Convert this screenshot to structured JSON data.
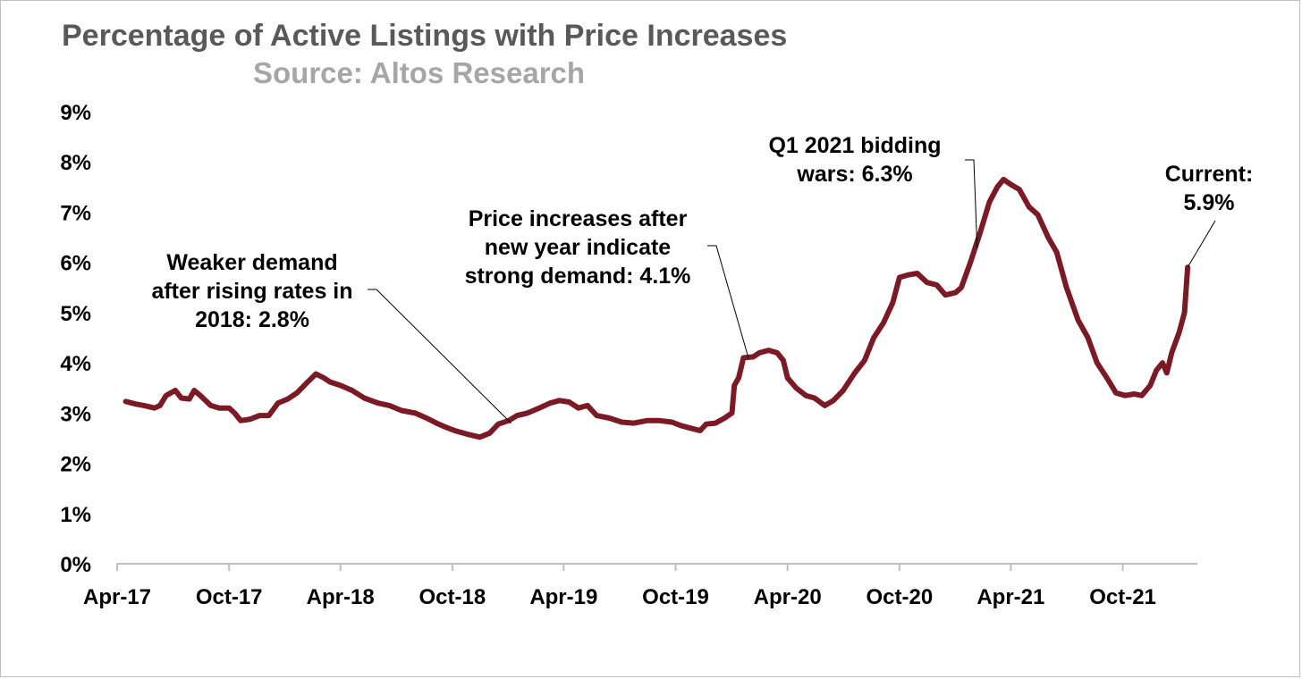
{
  "chart_data": {
    "type": "line",
    "title": "Percentage of Active Listings with Price Increases",
    "subtitle": "Source: Altos Research",
    "xlabel": "",
    "ylabel": "",
    "ylim": [
      0,
      9
    ],
    "yticks": [
      "0%",
      "1%",
      "2%",
      "3%",
      "4%",
      "5%",
      "6%",
      "7%",
      "8%",
      "9%"
    ],
    "xticks": [
      "Apr-17",
      "Oct-17",
      "Apr-18",
      "Oct-18",
      "Apr-19",
      "Oct-19",
      "Apr-20",
      "Oct-20",
      "Apr-21",
      "Oct-21"
    ],
    "xlim": [
      "2017-04-01",
      "2022-01-31"
    ],
    "grid": false,
    "legend": "none",
    "series": [
      {
        "color": "#7b1a24",
        "points": [
          [
            "2017-04-15",
            3.23
          ],
          [
            "2017-05-01",
            3.18
          ],
          [
            "2017-05-15",
            3.15
          ],
          [
            "2017-06-01",
            3.1
          ],
          [
            "2017-06-10",
            3.15
          ],
          [
            "2017-06-20",
            3.35
          ],
          [
            "2017-07-05",
            3.45
          ],
          [
            "2017-07-15",
            3.3
          ],
          [
            "2017-07-28",
            3.28
          ],
          [
            "2017-08-05",
            3.45
          ],
          [
            "2017-08-15",
            3.35
          ],
          [
            "2017-09-01",
            3.15
          ],
          [
            "2017-09-15",
            3.1
          ],
          [
            "2017-10-01",
            3.1
          ],
          [
            "2017-10-10",
            3.0
          ],
          [
            "2017-10-20",
            2.85
          ],
          [
            "2017-11-05",
            2.88
          ],
          [
            "2017-11-20",
            2.95
          ],
          [
            "2017-12-05",
            2.95
          ],
          [
            "2017-12-20",
            3.2
          ],
          [
            "2018-01-05",
            3.28
          ],
          [
            "2018-01-20",
            3.4
          ],
          [
            "2018-02-05",
            3.6
          ],
          [
            "2018-02-20",
            3.78
          ],
          [
            "2018-03-05",
            3.7
          ],
          [
            "2018-03-15",
            3.62
          ],
          [
            "2018-04-01",
            3.55
          ],
          [
            "2018-04-20",
            3.45
          ],
          [
            "2018-05-10",
            3.3
          ],
          [
            "2018-06-01",
            3.2
          ],
          [
            "2018-06-20",
            3.15
          ],
          [
            "2018-07-10",
            3.05
          ],
          [
            "2018-08-01",
            3.0
          ],
          [
            "2018-08-20",
            2.9
          ],
          [
            "2018-09-05",
            2.8
          ],
          [
            "2018-09-20",
            2.72
          ],
          [
            "2018-10-05",
            2.65
          ],
          [
            "2018-10-25",
            2.58
          ],
          [
            "2018-11-15",
            2.52
          ],
          [
            "2018-12-01",
            2.6
          ],
          [
            "2018-12-15",
            2.78
          ],
          [
            "2019-01-01",
            2.85
          ],
          [
            "2019-01-15",
            2.95
          ],
          [
            "2019-02-01",
            3.0
          ],
          [
            "2019-02-20",
            3.1
          ],
          [
            "2019-03-10",
            3.2
          ],
          [
            "2019-03-25",
            3.25
          ],
          [
            "2019-04-10",
            3.22
          ],
          [
            "2019-04-25",
            3.1
          ],
          [
            "2019-05-10",
            3.15
          ],
          [
            "2019-05-25",
            2.95
          ],
          [
            "2019-06-15",
            2.9
          ],
          [
            "2019-07-05",
            2.82
          ],
          [
            "2019-07-25",
            2.8
          ],
          [
            "2019-08-15",
            2.85
          ],
          [
            "2019-09-05",
            2.85
          ],
          [
            "2019-09-25",
            2.82
          ],
          [
            "2019-10-10",
            2.75
          ],
          [
            "2019-10-25",
            2.7
          ],
          [
            "2019-11-10",
            2.65
          ],
          [
            "2019-11-20",
            2.78
          ],
          [
            "2019-12-05",
            2.8
          ],
          [
            "2019-12-20",
            2.9
          ],
          [
            "2020-01-01",
            3.0
          ],
          [
            "2020-01-05",
            3.55
          ],
          [
            "2020-01-12",
            3.7
          ],
          [
            "2020-01-20",
            4.1
          ],
          [
            "2020-02-05",
            4.12
          ],
          [
            "2020-02-15",
            4.2
          ],
          [
            "2020-03-01",
            4.25
          ],
          [
            "2020-03-15",
            4.2
          ],
          [
            "2020-03-25",
            4.05
          ],
          [
            "2020-04-01",
            3.7
          ],
          [
            "2020-04-15",
            3.5
          ],
          [
            "2020-05-01",
            3.35
          ],
          [
            "2020-05-15",
            3.3
          ],
          [
            "2020-06-01",
            3.15
          ],
          [
            "2020-06-15",
            3.25
          ],
          [
            "2020-07-01",
            3.45
          ],
          [
            "2020-07-20",
            3.8
          ],
          [
            "2020-08-05",
            4.05
          ],
          [
            "2020-08-20",
            4.5
          ],
          [
            "2020-09-05",
            4.8
          ],
          [
            "2020-09-20",
            5.2
          ],
          [
            "2020-10-01",
            5.7
          ],
          [
            "2020-10-15",
            5.75
          ],
          [
            "2020-10-30",
            5.78
          ],
          [
            "2020-11-15",
            5.6
          ],
          [
            "2020-12-01",
            5.55
          ],
          [
            "2020-12-15",
            5.35
          ],
          [
            "2021-01-01",
            5.4
          ],
          [
            "2021-01-10",
            5.5
          ],
          [
            "2021-01-25",
            6.0
          ],
          [
            "2021-02-10",
            6.6
          ],
          [
            "2021-02-25",
            7.2
          ],
          [
            "2021-03-10",
            7.5
          ],
          [
            "2021-03-20",
            7.65
          ],
          [
            "2021-04-01",
            7.55
          ],
          [
            "2021-04-15",
            7.45
          ],
          [
            "2021-05-01",
            7.1
          ],
          [
            "2021-05-15",
            6.95
          ],
          [
            "2021-06-01",
            6.5
          ],
          [
            "2021-06-15",
            6.2
          ],
          [
            "2021-07-01",
            5.5
          ],
          [
            "2021-07-20",
            4.85
          ],
          [
            "2021-08-05",
            4.5
          ],
          [
            "2021-08-20",
            4.0
          ],
          [
            "2021-09-05",
            3.7
          ],
          [
            "2021-09-20",
            3.4
          ],
          [
            "2021-10-05",
            3.35
          ],
          [
            "2021-10-20",
            3.38
          ],
          [
            "2021-11-01",
            3.35
          ],
          [
            "2021-11-15",
            3.55
          ],
          [
            "2021-11-25",
            3.85
          ],
          [
            "2021-12-05",
            4.0
          ],
          [
            "2021-12-12",
            3.8
          ],
          [
            "2021-12-20",
            4.2
          ],
          [
            "2022-01-01",
            4.6
          ],
          [
            "2022-01-10",
            5.0
          ],
          [
            "2022-01-15",
            5.9
          ]
        ]
      }
    ],
    "annotations": [
      {
        "lines": [
          "Weaker demand",
          "after rising rates in",
          "2018: 2.8%"
        ],
        "target": [
          "2019-01-05",
          2.8
        ]
      },
      {
        "lines": [
          "Price increases after",
          "new year indicate",
          "strong demand: 4.1%"
        ],
        "target": [
          "2020-01-28",
          4.1
        ]
      },
      {
        "lines": [
          "Q1 2021 bidding",
          "wars: 6.3%"
        ],
        "target": [
          "2021-02-05",
          6.3
        ]
      },
      {
        "lines": [
          "Current:",
          "5.9%"
        ],
        "target": [
          "2022-01-15",
          5.9
        ]
      }
    ]
  }
}
